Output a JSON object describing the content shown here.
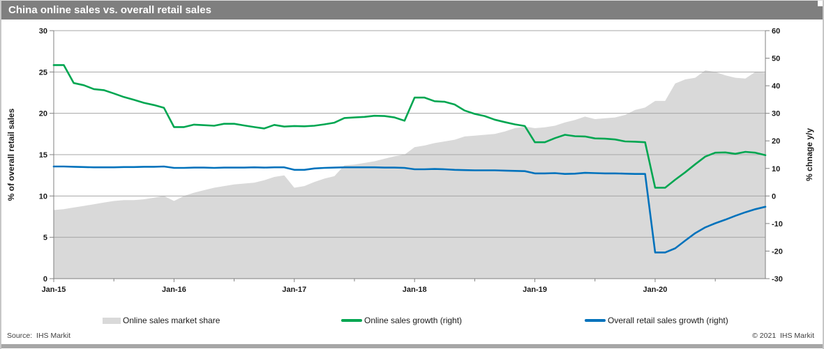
{
  "header": {
    "title": "China online sales vs. overall retail sales"
  },
  "footer": {
    "source": "Source:  IHS Markit",
    "copyright": "© 2021  IHS Markit"
  },
  "colors": {
    "title_bar": "#7f7f7f",
    "bottom_strip": "#a6a6a6",
    "gridline": "#a6a6a6",
    "axis_line": "#808080",
    "tick_label": "#1a1a1a",
    "area_gray": "#d9d9d9",
    "green": "#00a651",
    "blue": "#0072bc"
  },
  "legend": [
    {
      "label": "Online sales market share",
      "swatch": "area",
      "color": "#d9d9d9"
    },
    {
      "label": "Online sales growth (right)",
      "swatch": "line",
      "color": "#00a651"
    },
    {
      "label": "Overall retail sales growth (right)",
      "swatch": "line",
      "color": "#0072bc"
    }
  ],
  "chart_data": {
    "type": "line+area",
    "title": "China online sales vs. overall retail sales",
    "grid": true,
    "legend_position": "bottom",
    "left_axis": {
      "title": "% of overall retail sales",
      "min": 0,
      "max": 30,
      "ticks": [
        0,
        5,
        10,
        15,
        20,
        25,
        30
      ]
    },
    "right_axis": {
      "title": "% chnage y/y",
      "min": -30,
      "max": 60,
      "ticks": [
        60,
        50,
        40,
        30,
        20,
        10,
        0,
        -10,
        -20,
        -30
      ]
    },
    "x_ticks": [
      {
        "label": "Jan-15",
        "month_index": 0
      },
      {
        "label": "Jan-16",
        "month_index": 12
      },
      {
        "label": "Jan-17",
        "month_index": 24
      },
      {
        "label": "Jan-18",
        "month_index": 36
      },
      {
        "label": "Jan-19",
        "month_index": 48
      },
      {
        "label": "Jan-20",
        "month_index": 60
      }
    ],
    "minor_tick_month_indices": [
      6,
      18,
      30,
      42,
      54,
      66
    ],
    "categories": [
      "Jan-15",
      "Feb-15",
      "Mar-15",
      "Apr-15",
      "May-15",
      "Jun-15",
      "Jul-15",
      "Aug-15",
      "Sep-15",
      "Oct-15",
      "Nov-15",
      "Dec-15",
      "Jan-16",
      "Feb-16",
      "Mar-16",
      "Apr-16",
      "May-16",
      "Jun-16",
      "Jul-16",
      "Aug-16",
      "Sep-16",
      "Oct-16",
      "Nov-16",
      "Dec-16",
      "Jan-17",
      "Feb-17",
      "Mar-17",
      "Apr-17",
      "May-17",
      "Jun-17",
      "Jul-17",
      "Aug-17",
      "Sep-17",
      "Oct-17",
      "Nov-17",
      "Dec-17",
      "Jan-18",
      "Feb-18",
      "Mar-18",
      "Apr-18",
      "May-18",
      "Jun-18",
      "Jul-18",
      "Aug-18",
      "Sep-18",
      "Oct-18",
      "Nov-18",
      "Dec-18",
      "Jan-19",
      "Feb-19",
      "Mar-19",
      "Apr-19",
      "May-19",
      "Jun-19",
      "Jul-19",
      "Aug-19",
      "Sep-19",
      "Oct-19",
      "Nov-19",
      "Dec-19",
      "Jan-20",
      "Feb-20",
      "Mar-20",
      "Apr-20",
      "May-20",
      "Jun-20",
      "Jul-20",
      "Aug-20",
      "Sep-20",
      "Oct-20",
      "Nov-20",
      "Dec-20"
    ],
    "series": [
      {
        "name": "Online sales market share",
        "axis": "left",
        "type": "area",
        "color": "#d9d9d9",
        "values": [
          8.3,
          8.4,
          8.6,
          8.8,
          9.0,
          9.2,
          9.4,
          9.5,
          9.5,
          9.6,
          9.8,
          10.0,
          9.4,
          10.0,
          10.4,
          10.7,
          11.0,
          11.2,
          11.4,
          11.5,
          11.6,
          11.9,
          12.3,
          12.5,
          11.0,
          11.2,
          11.7,
          12.1,
          12.4,
          13.7,
          13.8,
          14.0,
          14.2,
          14.5,
          14.8,
          15.0,
          15.9,
          16.1,
          16.4,
          16.6,
          16.8,
          17.2,
          17.3,
          17.4,
          17.5,
          17.8,
          18.2,
          18.4,
          18.2,
          18.3,
          18.5,
          18.9,
          19.2,
          19.6,
          19.3,
          19.4,
          19.5,
          19.8,
          20.4,
          20.7,
          21.5,
          21.5,
          23.6,
          24.1,
          24.3,
          25.2,
          25.0,
          24.6,
          24.3,
          24.2,
          25.0,
          24.9
        ]
      },
      {
        "name": "Online sales growth (right)",
        "axis": "right",
        "type": "line",
        "color": "#00a651",
        "values": [
          47.5,
          47.5,
          41.0,
          40.2,
          38.8,
          38.4,
          37.2,
          35.9,
          34.9,
          33.8,
          33.0,
          32.0,
          25.0,
          25.0,
          25.9,
          25.7,
          25.5,
          26.2,
          26.2,
          25.6,
          25.0,
          24.5,
          25.8,
          25.2,
          25.4,
          25.3,
          25.5,
          26.0,
          26.6,
          28.3,
          28.5,
          28.7,
          29.1,
          29.0,
          28.5,
          27.3,
          35.7,
          35.7,
          34.4,
          34.2,
          33.2,
          31.0,
          29.8,
          29.0,
          27.7,
          26.8,
          26.0,
          25.4,
          19.5,
          19.5,
          21.0,
          22.2,
          21.7,
          21.6,
          20.9,
          20.8,
          20.5,
          19.8,
          19.7,
          19.5,
          3.0,
          3.0,
          5.9,
          8.6,
          11.5,
          14.3,
          15.7,
          15.8,
          15.3,
          16.0,
          15.7,
          14.8
        ]
      },
      {
        "name": "Overall retail sales growth (right)",
        "axis": "right",
        "type": "line",
        "color": "#0072bc",
        "values": [
          10.7,
          10.7,
          10.6,
          10.5,
          10.4,
          10.4,
          10.4,
          10.5,
          10.5,
          10.6,
          10.6,
          10.7,
          10.2,
          10.2,
          10.3,
          10.3,
          10.2,
          10.3,
          10.3,
          10.3,
          10.4,
          10.3,
          10.4,
          10.4,
          9.5,
          9.5,
          10.0,
          10.2,
          10.3,
          10.4,
          10.4,
          10.4,
          10.4,
          10.3,
          10.3,
          10.2,
          9.7,
          9.7,
          9.8,
          9.7,
          9.5,
          9.4,
          9.3,
          9.3,
          9.3,
          9.2,
          9.1,
          9.0,
          8.2,
          8.2,
          8.3,
          8.0,
          8.1,
          8.4,
          8.3,
          8.2,
          8.2,
          8.1,
          8.0,
          8.0,
          -20.5,
          -20.5,
          -19.0,
          -16.2,
          -13.5,
          -11.4,
          -9.9,
          -8.6,
          -7.2,
          -5.9,
          -4.8,
          -3.9
        ]
      }
    ]
  }
}
